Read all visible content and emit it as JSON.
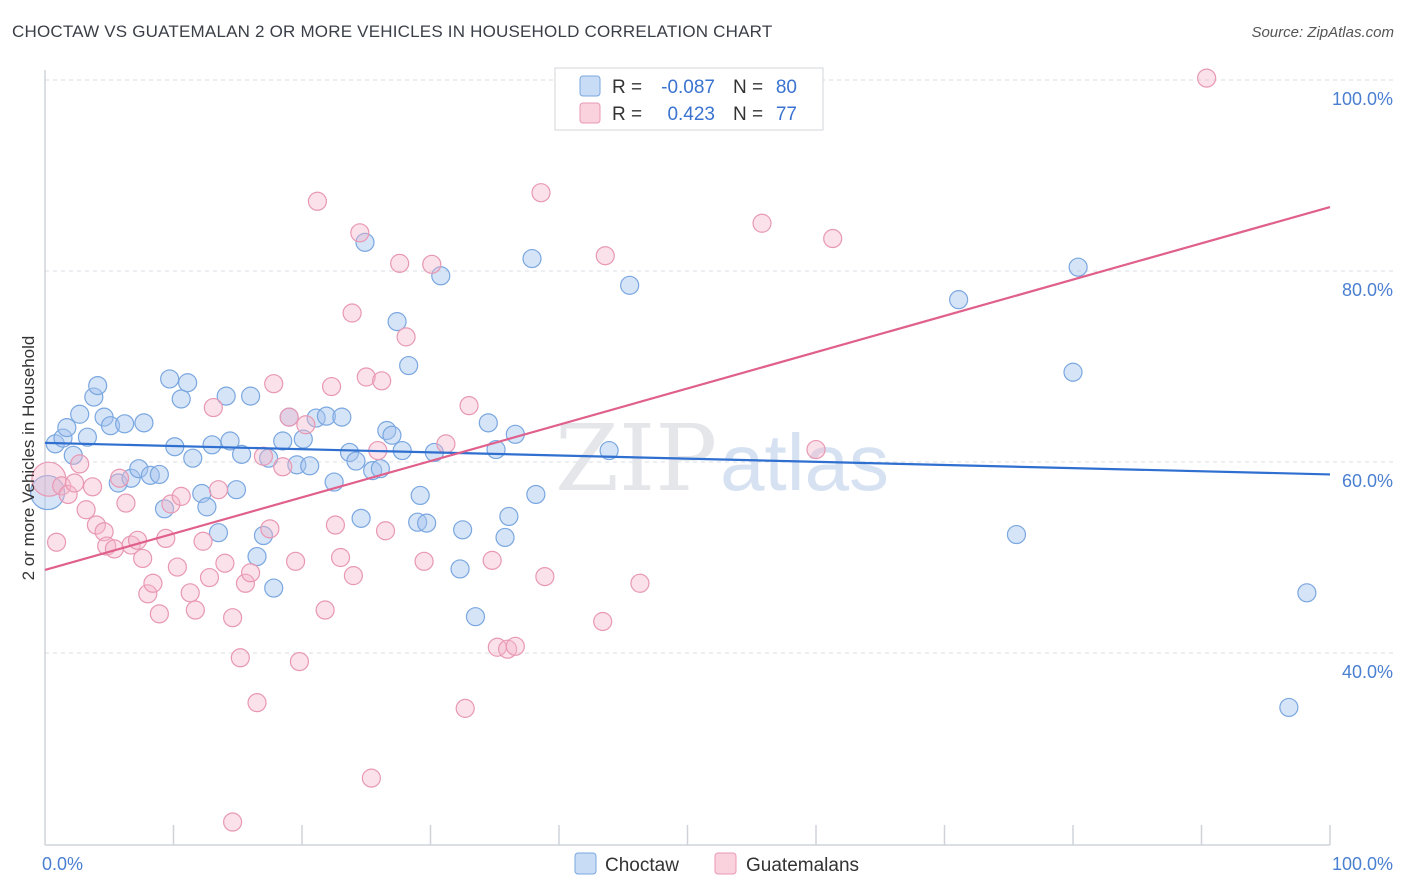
{
  "title": "CHOCTAW VS GUATEMALAN 2 OR MORE VEHICLES IN HOUSEHOLD CORRELATION CHART",
  "source": "Source: ZipAtlas.com",
  "watermark": {
    "zip": "ZIP",
    "atlas": "atlas"
  },
  "colors": {
    "choctaw_fill": "rgba(164,196,238,0.45)",
    "choctaw_stroke": "#7aa7e0",
    "choctaw_line": "#2f6fd0",
    "guat_fill": "rgba(245,180,200,0.40)",
    "guat_stroke": "#e898b3",
    "guat_line": "#e0608c",
    "tick": "#4a7fd1",
    "grid": "#d9dde3"
  },
  "legend": {
    "rows": [
      {
        "r_label": "R =",
        "r_value": "-0.087",
        "n_label": "N =",
        "n_value": "80"
      },
      {
        "r_label": "R =",
        "r_value": "0.423",
        "n_label": "N =",
        "n_value": "77"
      }
    ]
  },
  "chart_data": {
    "type": "scatter",
    "title": "CHOCTAW VS GUATEMALAN 2 OR MORE VEHICLES IN HOUSEHOLD CORRELATION CHART",
    "xlabel": "",
    "ylabel": "2 or more Vehicles in Household",
    "xlim": [
      0,
      100
    ],
    "ylim": [
      20,
      102
    ],
    "x_ticks": [
      "0.0%",
      "100.0%"
    ],
    "y_ticks": [
      {
        "value": 40,
        "label": "40.0%"
      },
      {
        "value": 60,
        "label": "60.0%"
      },
      {
        "value": 80,
        "label": "80.0%"
      },
      {
        "value": 100,
        "label": "100.0%"
      }
    ],
    "legend_position": "bottom-center",
    "series": [
      {
        "name": "Choctaw",
        "r": -0.087,
        "n": 80,
        "trend": {
          "x": [
            0,
            100
          ],
          "y": [
            62.0,
            58.7
          ]
        },
        "points": [
          [
            0.2,
            56.8
          ],
          [
            0.8,
            61.9
          ],
          [
            1.4,
            62.5
          ],
          [
            1.7,
            63.6
          ],
          [
            2.2,
            60.7
          ],
          [
            2.7,
            65.0
          ],
          [
            3.3,
            62.6
          ],
          [
            3.8,
            66.8
          ],
          [
            4.1,
            68.0
          ],
          [
            4.6,
            64.7
          ],
          [
            5.1,
            63.8
          ],
          [
            5.7,
            57.8
          ],
          [
            6.2,
            64.0
          ],
          [
            6.7,
            58.3
          ],
          [
            7.3,
            59.3
          ],
          [
            7.7,
            64.1
          ],
          [
            8.2,
            58.6
          ],
          [
            8.9,
            58.7
          ],
          [
            9.3,
            55.1
          ],
          [
            9.7,
            68.7
          ],
          [
            10.1,
            61.6
          ],
          [
            10.6,
            66.6
          ],
          [
            11.1,
            68.3
          ],
          [
            11.5,
            60.4
          ],
          [
            12.2,
            56.7
          ],
          [
            12.6,
            55.3
          ],
          [
            13.0,
            61.8
          ],
          [
            13.5,
            52.6
          ],
          [
            14.1,
            66.9
          ],
          [
            14.4,
            62.2
          ],
          [
            14.9,
            57.1
          ],
          [
            15.3,
            60.8
          ],
          [
            16.0,
            66.9
          ],
          [
            16.5,
            50.1
          ],
          [
            17.0,
            52.3
          ],
          [
            17.4,
            60.4
          ],
          [
            17.8,
            46.8
          ],
          [
            18.5,
            62.2
          ],
          [
            19.0,
            64.7
          ],
          [
            19.6,
            59.7
          ],
          [
            20.1,
            62.4
          ],
          [
            20.6,
            59.6
          ],
          [
            21.1,
            64.6
          ],
          [
            21.9,
            64.8
          ],
          [
            22.5,
            57.9
          ],
          [
            23.1,
            64.7
          ],
          [
            23.7,
            61.0
          ],
          [
            24.2,
            60.1
          ],
          [
            24.6,
            54.1
          ],
          [
            24.9,
            83.0
          ],
          [
            25.5,
            59.1
          ],
          [
            26.1,
            59.3
          ],
          [
            26.6,
            63.3
          ],
          [
            27.0,
            62.8
          ],
          [
            27.4,
            74.7
          ],
          [
            27.8,
            61.2
          ],
          [
            28.3,
            70.1
          ],
          [
            29.0,
            53.7
          ],
          [
            29.2,
            56.5
          ],
          [
            29.7,
            53.6
          ],
          [
            30.3,
            61.0
          ],
          [
            30.8,
            79.5
          ],
          [
            32.3,
            48.8
          ],
          [
            32.5,
            52.9
          ],
          [
            33.5,
            43.8
          ],
          [
            34.5,
            64.1
          ],
          [
            35.1,
            61.3
          ],
          [
            35.8,
            52.1
          ],
          [
            36.1,
            54.3
          ],
          [
            36.6,
            62.9
          ],
          [
            37.9,
            81.3
          ],
          [
            38.2,
            56.6
          ],
          [
            43.9,
            61.2
          ],
          [
            45.5,
            78.5
          ],
          [
            71.1,
            77.0
          ],
          [
            75.6,
            52.4
          ],
          [
            80.0,
            69.4
          ],
          [
            80.4,
            80.4
          ],
          [
            98.2,
            46.3
          ],
          [
            96.8,
            34.3
          ]
        ]
      },
      {
        "name": "Guatemalans",
        "r": 0.423,
        "n": 77,
        "trend": {
          "x": [
            0,
            100
          ],
          "y": [
            48.7,
            86.7
          ]
        },
        "points": [
          [
            0.3,
            58.2
          ],
          [
            0.9,
            51.6
          ],
          [
            1.3,
            57.5
          ],
          [
            1.8,
            56.6
          ],
          [
            2.3,
            57.8
          ],
          [
            2.7,
            59.8
          ],
          [
            3.2,
            55.0
          ],
          [
            3.7,
            57.4
          ],
          [
            4.0,
            53.4
          ],
          [
            4.6,
            52.7
          ],
          [
            4.8,
            51.2
          ],
          [
            5.4,
            50.9
          ],
          [
            5.8,
            58.3
          ],
          [
            6.3,
            55.7
          ],
          [
            6.7,
            51.3
          ],
          [
            7.2,
            51.8
          ],
          [
            7.6,
            49.9
          ],
          [
            8.0,
            46.2
          ],
          [
            8.4,
            47.3
          ],
          [
            8.9,
            44.1
          ],
          [
            9.4,
            52.0
          ],
          [
            9.8,
            55.6
          ],
          [
            10.3,
            49.0
          ],
          [
            10.6,
            56.4
          ],
          [
            11.3,
            46.3
          ],
          [
            11.7,
            44.5
          ],
          [
            12.3,
            51.7
          ],
          [
            12.8,
            47.9
          ],
          [
            13.1,
            65.7
          ],
          [
            13.5,
            57.1
          ],
          [
            14.0,
            49.4
          ],
          [
            14.6,
            43.7
          ],
          [
            15.2,
            39.5
          ],
          [
            15.6,
            47.3
          ],
          [
            16.0,
            48.4
          ],
          [
            16.5,
            34.8
          ],
          [
            17.0,
            60.6
          ],
          [
            17.5,
            53.0
          ],
          [
            17.8,
            68.2
          ],
          [
            18.5,
            59.5
          ],
          [
            19.0,
            64.7
          ],
          [
            19.5,
            49.6
          ],
          [
            19.8,
            39.1
          ],
          [
            20.3,
            63.9
          ],
          [
            21.2,
            87.3
          ],
          [
            21.8,
            44.5
          ],
          [
            22.3,
            67.9
          ],
          [
            22.6,
            53.4
          ],
          [
            23.0,
            50.0
          ],
          [
            23.9,
            75.6
          ],
          [
            24.0,
            48.1
          ],
          [
            24.5,
            84.0
          ],
          [
            25.0,
            68.9
          ],
          [
            25.4,
            26.9
          ],
          [
            25.9,
            61.2
          ],
          [
            26.2,
            68.5
          ],
          [
            26.5,
            52.8
          ],
          [
            27.6,
            80.8
          ],
          [
            28.1,
            73.1
          ],
          [
            29.5,
            49.6
          ],
          [
            30.1,
            80.7
          ],
          [
            31.2,
            61.9
          ],
          [
            32.7,
            34.2
          ],
          [
            33.0,
            65.9
          ],
          [
            34.8,
            49.7
          ],
          [
            35.2,
            40.6
          ],
          [
            36.0,
            40.4
          ],
          [
            36.6,
            40.7
          ],
          [
            38.6,
            88.2
          ],
          [
            38.9,
            48.0
          ],
          [
            43.4,
            43.3
          ],
          [
            43.6,
            81.6
          ],
          [
            46.3,
            47.3
          ],
          [
            55.8,
            85.0
          ],
          [
            60.0,
            61.3
          ],
          [
            61.3,
            83.4
          ],
          [
            90.4,
            100.2
          ],
          [
            14.6,
            22.3
          ]
        ]
      }
    ]
  }
}
